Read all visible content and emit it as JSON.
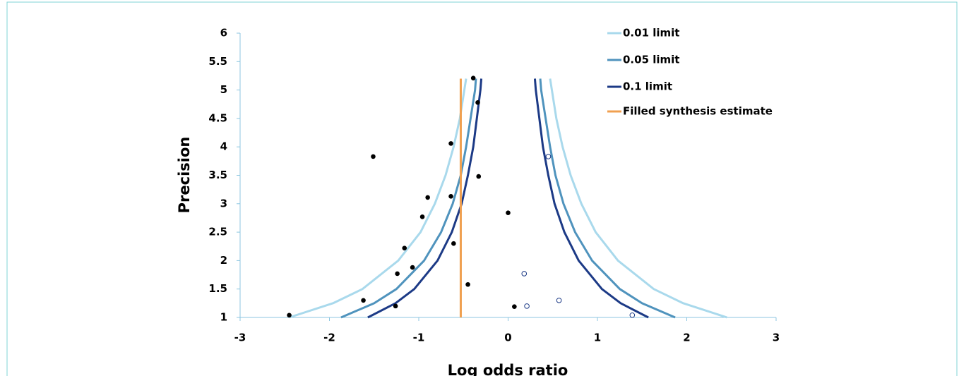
{
  "chart_data": {
    "type": "scatter",
    "x_label": "Log odds ratio",
    "y_label": "Precision",
    "xlim": [
      -3,
      3
    ],
    "xticks": [
      -3,
      -2,
      -1,
      0,
      1,
      2,
      3
    ],
    "ylim": [
      1,
      6
    ],
    "yticks": [
      1,
      1.5,
      2,
      2.5,
      3,
      3.5,
      4,
      4.5,
      5,
      5.5,
      6
    ],
    "legend": "top-right",
    "series": [
      {
        "name": "0.01 limit",
        "color": "#a9d9ec",
        "x": [
          -2.45,
          -1.96,
          -1.63,
          -1.23,
          -0.98,
          -0.82,
          -0.7,
          -0.61,
          -0.54,
          -0.49,
          -0.47,
          null,
          0.47,
          0.49,
          0.54,
          0.61,
          0.7,
          0.82,
          0.98,
          1.23,
          1.63,
          1.96,
          2.45
        ],
        "y": [
          1,
          1.25,
          1.5,
          2,
          2.5,
          3,
          3.5,
          4,
          4.5,
          5,
          5.2,
          null,
          5.2,
          5,
          4.5,
          4,
          3.5,
          3,
          2.5,
          2,
          1.5,
          1.25,
          1
        ]
      },
      {
        "name": "0.05 limit",
        "color": "#4f93bd",
        "x": [
          -1.87,
          -1.5,
          -1.25,
          -0.94,
          -0.75,
          -0.62,
          -0.53,
          -0.47,
          -0.42,
          -0.37,
          -0.36,
          null,
          0.36,
          0.37,
          0.42,
          0.47,
          0.53,
          0.62,
          0.75,
          0.94,
          1.25,
          1.5,
          1.87
        ],
        "y": [
          1,
          1.25,
          1.5,
          2,
          2.5,
          3,
          3.5,
          4,
          4.5,
          5,
          5.2,
          null,
          5.2,
          5,
          4.5,
          4,
          3.5,
          3,
          2.5,
          2,
          1.5,
          1.25,
          1
        ]
      },
      {
        "name": "0.1 limit",
        "color": "#1c3a86",
        "x": [
          -1.57,
          -1.26,
          -1.05,
          -0.79,
          -0.63,
          -0.52,
          -0.45,
          -0.39,
          -0.35,
          -0.31,
          -0.3,
          null,
          0.3,
          0.31,
          0.35,
          0.39,
          0.45,
          0.52,
          0.63,
          0.79,
          1.05,
          1.26,
          1.57
        ],
        "y": [
          1,
          1.25,
          1.5,
          2,
          2.5,
          3,
          3.5,
          4,
          4.5,
          5,
          5.2,
          null,
          5.2,
          5,
          4.5,
          4,
          3.5,
          3,
          2.5,
          2,
          1.5,
          1.25,
          1
        ]
      },
      {
        "name": "Filled synthesis estimate",
        "color": "#f0a050",
        "x": [
          -0.53,
          -0.53
        ],
        "y": [
          1,
          5.2
        ]
      }
    ],
    "points": {
      "color": "#000000",
      "x": [
        -2.45,
        -1.62,
        -1.26,
        -1.24,
        -1.07,
        -1.16,
        -0.96,
        -0.9,
        -1.51,
        -0.64,
        -0.64,
        -0.61,
        -0.45,
        -0.33,
        -0.39,
        -0.34,
        0,
        0.07
      ],
      "y": [
        1.04,
        1.3,
        1.2,
        1.77,
        1.88,
        2.22,
        2.77,
        3.11,
        3.83,
        4.06,
        3.13,
        2.3,
        1.58,
        3.48,
        5.21,
        4.78,
        2.84,
        1.19
      ]
    },
    "open_points": {
      "color": "#1c3a86",
      "x": [
        0.45,
        0.18,
        0.21,
        0.57,
        1.39
      ],
      "y": [
        3.83,
        1.77,
        1.2,
        1.3,
        1.04
      ]
    }
  }
}
